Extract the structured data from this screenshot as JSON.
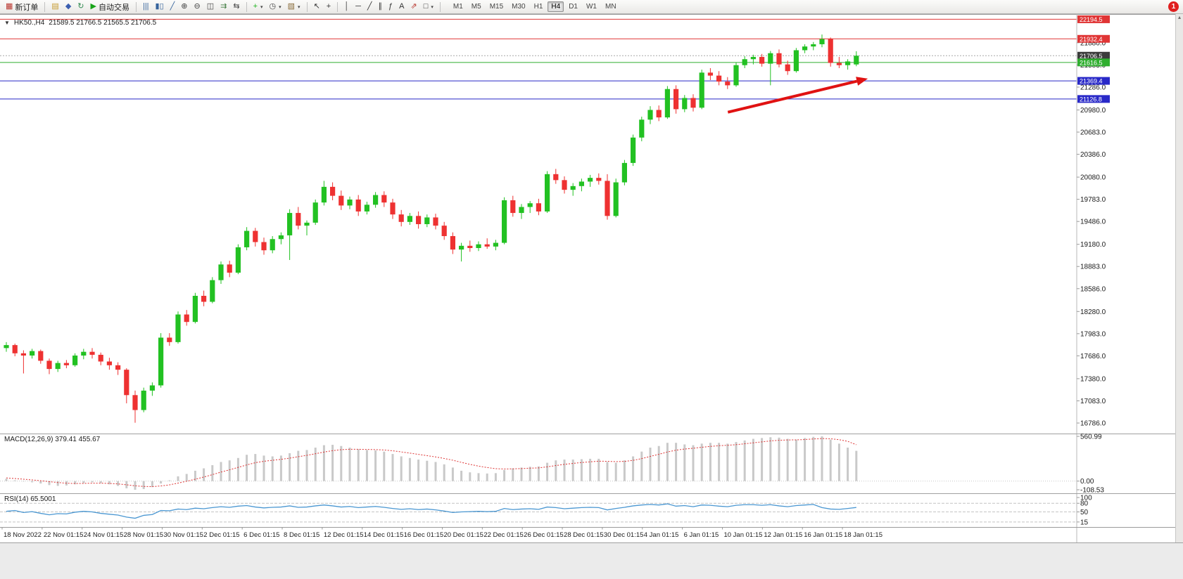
{
  "window": {
    "notification_badge": "1",
    "up_arrow_icon": "▴"
  },
  "toolbar": {
    "dropdown_glyph": "▾",
    "groups": [
      {
        "items": [
          {
            "name": "new-order-button",
            "glyph": "▦",
            "color": "#b8342c",
            "label": "新订单"
          }
        ]
      },
      {
        "items": [
          {
            "name": "charts-button",
            "glyph": "▤",
            "color": "#c79a2e"
          },
          {
            "name": "navigator-button",
            "glyph": "◆",
            "color": "#3c5fb0"
          },
          {
            "name": "refresh-button",
            "glyph": "↻",
            "color": "#2d8a4e"
          },
          {
            "name": "autotrading-button",
            "glyph": "▶",
            "color": "#17a317",
            "label": "自动交易"
          }
        ]
      },
      {
        "items": [
          {
            "name": "bar-chart-button",
            "glyph": "|||",
            "color": "#35639c"
          },
          {
            "name": "candlestick-chart-button",
            "glyph": "▮▯",
            "color": "#35639c"
          },
          {
            "name": "line-chart-button",
            "glyph": "╱",
            "color": "#35639c"
          },
          {
            "name": "zoom-in-button",
            "glyph": "⊕",
            "color": "#444444"
          },
          {
            "name": "zoom-out-button",
            "glyph": "⊖",
            "color": "#444444"
          },
          {
            "name": "tile-windows-button",
            "glyph": "◫",
            "color": "#444444"
          },
          {
            "name": "auto-scroll-button",
            "glyph": "⇉",
            "color": "#3f7a3f"
          },
          {
            "name": "chart-shift-button",
            "glyph": "⇆",
            "color": "#444444"
          }
        ]
      },
      {
        "items": [
          {
            "name": "indicators-button",
            "glyph": "+",
            "color": "#19b219",
            "dropdown": true
          },
          {
            "name": "periods-button",
            "glyph": "◷",
            "color": "#444444",
            "dropdown": true
          },
          {
            "name": "templates-button",
            "glyph": "▧",
            "color": "#8a6d3b",
            "dropdown": true
          }
        ]
      },
      {
        "items": [
          {
            "name": "cursor-button",
            "glyph": "↖",
            "color": "#333333"
          },
          {
            "name": "crosshair-button",
            "glyph": "+",
            "color": "#333333"
          }
        ]
      },
      {
        "items": [
          {
            "name": "vertical-line-button",
            "glyph": "│",
            "color": "#333333"
          },
          {
            "name": "horizontal-line-button",
            "glyph": "─",
            "color": "#333333"
          },
          {
            "name": "trendline-button",
            "glyph": "╱",
            "color": "#333333"
          },
          {
            "name": "channel-button",
            "glyph": "∥",
            "color": "#333333"
          },
          {
            "name": "fibonacci-button",
            "glyph": "ƒ",
            "color": "#333333"
          },
          {
            "name": "text-button",
            "glyph": "A",
            "color": "#333333"
          },
          {
            "name": "arrows-button",
            "glyph": "⇗",
            "color": "#b8342c"
          },
          {
            "name": "shapes-button",
            "glyph": "□",
            "color": "#333333",
            "dropdown": true
          }
        ]
      }
    ],
    "timeframes": {
      "items": [
        "M1",
        "M5",
        "M15",
        "M30",
        "H1",
        "H4",
        "D1",
        "W1",
        "MN"
      ],
      "active": "H4"
    }
  },
  "chart": {
    "collapse_icon": "▼",
    "symbol_label": "HK50.,H4",
    "ohlc_label": "21589.5 21766.5 21565.5 21706.5",
    "price_ticks": [
      21880.0,
      21583.0,
      21286.0,
      20980.0,
      20683.0,
      20386.0,
      20080.0,
      19783.0,
      19486.0,
      19180.0,
      18883.0,
      18586.0,
      18280.0,
      17983.0,
      17686.0,
      17380.0,
      17083.0,
      16786.0
    ],
    "price_tags": [
      {
        "text": "22194.5",
        "price": 22194.5,
        "bg": "#e03535"
      },
      {
        "text": "21932.4",
        "price": 21932.4,
        "bg": "#e03535"
      },
      {
        "text": "21706.5",
        "price": 21706.5,
        "bg": "#3c3c3c"
      },
      {
        "text": "21616.5",
        "price": 21616.5,
        "bg": "#2fae2f"
      },
      {
        "text": "21369.4",
        "price": 21369.4,
        "bg": "#2929c8"
      },
      {
        "text": "21126.8",
        "price": 21126.8,
        "bg": "#2929c8"
      }
    ]
  },
  "macd_panel": {
    "label": "MACD(12,26,9) 379.41 455.67",
    "max": 560.99,
    "min": -108.53,
    "axis_labels": [
      {
        "text": "560.99",
        "value": 560.99
      },
      {
        "text": "0.00",
        "value": 0
      },
      {
        "text": "-108.53",
        "value": -108.53
      }
    ]
  },
  "rsi_panel": {
    "label": "RSI(14) 65.5001",
    "levels": [
      80,
      50,
      15
    ],
    "axis_labels": [
      {
        "text": "100",
        "value": 100
      },
      {
        "text": "80",
        "value": 80
      },
      {
        "text": "50",
        "value": 50
      },
      {
        "text": "15",
        "value": 15
      }
    ]
  },
  "time_axis": {
    "labels": [
      "18 Nov 2022",
      "22 Nov 01:15",
      "24 Nov 01:15",
      "28 Nov 01:15",
      "30 Nov 01:15",
      "2 Dec 01:15",
      "6 Dec 01:15",
      "8 Dec 01:15",
      "12 Dec 01:15",
      "14 Dec 01:15",
      "16 Dec 01:15",
      "20 Dec 01:15",
      "22 Dec 01:15",
      "26 Dec 01:15",
      "28 Dec 01:15",
      "30 Dec 01:15",
      "4 Jan 01:15",
      "6 Jan 01:15",
      "10 Jan 01:15",
      "12 Jan 01:15",
      "16 Jan 01:15",
      "18 Jan 01:15"
    ]
  },
  "colors": {
    "bull": "#22c122",
    "bear": "#ee3131",
    "macd_hist": "#c9c9c9",
    "macd_signal": "#dd3333",
    "rsi_line": "#4a97d2",
    "axis_text": "#1a1a1a"
  },
  "chart_data": {
    "type": "candlestick",
    "symbol": "HK50.",
    "timeframe": "H4",
    "title": "HK50.,H4",
    "price_range": [
      16645,
      22208
    ],
    "last_ohlc": {
      "open": 21589.5,
      "high": 21766.5,
      "low": 21565.5,
      "close": 21706.5
    },
    "candles": [
      [
        17790,
        17870,
        17740,
        17830
      ],
      [
        17830,
        17850,
        17680,
        17720
      ],
      [
        17720,
        17760,
        17450,
        17690
      ],
      [
        17690,
        17780,
        17650,
        17750
      ],
      [
        17750,
        17770,
        17580,
        17620
      ],
      [
        17620,
        17650,
        17440,
        17510
      ],
      [
        17510,
        17620,
        17470,
        17590
      ],
      [
        17590,
        17630,
        17520,
        17560
      ],
      [
        17560,
        17720,
        17540,
        17690
      ],
      [
        17690,
        17780,
        17640,
        17740
      ],
      [
        17740,
        17790,
        17650,
        17700
      ],
      [
        17700,
        17730,
        17560,
        17610
      ],
      [
        17610,
        17660,
        17500,
        17560
      ],
      [
        17560,
        17600,
        17430,
        17500
      ],
      [
        17500,
        17520,
        17050,
        17160
      ],
      [
        17160,
        17220,
        16790,
        16960
      ],
      [
        16960,
        17260,
        16930,
        17220
      ],
      [
        17220,
        17330,
        17150,
        17290
      ],
      [
        17290,
        17990,
        17260,
        17930
      ],
      [
        17930,
        17990,
        17820,
        17870
      ],
      [
        17870,
        18280,
        17850,
        18240
      ],
      [
        18240,
        18300,
        18090,
        18140
      ],
      [
        18140,
        18530,
        18120,
        18490
      ],
      [
        18490,
        18560,
        18350,
        18410
      ],
      [
        18410,
        18740,
        18390,
        18700
      ],
      [
        18700,
        18950,
        18650,
        18910
      ],
      [
        18910,
        18960,
        18740,
        18800
      ],
      [
        18800,
        19180,
        18780,
        19140
      ],
      [
        19140,
        19410,
        19100,
        19360
      ],
      [
        19360,
        19400,
        19150,
        19210
      ],
      [
        19210,
        19270,
        19040,
        19100
      ],
      [
        19100,
        19290,
        19060,
        19250
      ],
      [
        19250,
        19340,
        19180,
        19300
      ],
      [
        19300,
        19650,
        18970,
        19600
      ],
      [
        19600,
        19680,
        19380,
        19430
      ],
      [
        19430,
        19500,
        19300,
        19470
      ],
      [
        19470,
        19780,
        19440,
        19740
      ],
      [
        19740,
        20030,
        19700,
        19950
      ],
      [
        19950,
        20010,
        19770,
        19830
      ],
      [
        19830,
        19900,
        19640,
        19700
      ],
      [
        19700,
        19820,
        19650,
        19780
      ],
      [
        19780,
        19840,
        19560,
        19620
      ],
      [
        19620,
        19750,
        19580,
        19710
      ],
      [
        19710,
        19880,
        19670,
        19840
      ],
      [
        19840,
        19890,
        19680,
        19740
      ],
      [
        19740,
        19790,
        19520,
        19580
      ],
      [
        19580,
        19640,
        19420,
        19480
      ],
      [
        19480,
        19600,
        19440,
        19560
      ],
      [
        19560,
        19620,
        19390,
        19450
      ],
      [
        19450,
        19580,
        19410,
        19540
      ],
      [
        19540,
        19590,
        19380,
        19430
      ],
      [
        19430,
        19480,
        19240,
        19290
      ],
      [
        19290,
        19340,
        19050,
        19110
      ],
      [
        19110,
        19200,
        18950,
        19160
      ],
      [
        19160,
        19230,
        19080,
        19130
      ],
      [
        19130,
        19220,
        19090,
        19180
      ],
      [
        19180,
        19260,
        19120,
        19150
      ],
      [
        19150,
        19240,
        19100,
        19200
      ],
      [
        19200,
        19810,
        19180,
        19770
      ],
      [
        19770,
        19830,
        19550,
        19600
      ],
      [
        19600,
        19720,
        19520,
        19680
      ],
      [
        19680,
        19760,
        19600,
        19730
      ],
      [
        19730,
        19790,
        19570,
        19620
      ],
      [
        19620,
        20160,
        19600,
        20120
      ],
      [
        20120,
        20190,
        19990,
        20040
      ],
      [
        20040,
        20090,
        19860,
        19910
      ],
      [
        19910,
        20000,
        19830,
        19960
      ],
      [
        19960,
        20060,
        19890,
        20020
      ],
      [
        20020,
        20110,
        19950,
        20070
      ],
      [
        20070,
        20130,
        19980,
        20030
      ],
      [
        20030,
        20120,
        19510,
        19560
      ],
      [
        19560,
        20060,
        19540,
        20010
      ],
      [
        20010,
        20310,
        19970,
        20270
      ],
      [
        20270,
        20650,
        20230,
        20610
      ],
      [
        20610,
        20890,
        20560,
        20850
      ],
      [
        20850,
        21030,
        20790,
        20980
      ],
      [
        20980,
        21040,
        20830,
        20880
      ],
      [
        20880,
        21300,
        20860,
        21260
      ],
      [
        21260,
        21310,
        20930,
        20990
      ],
      [
        20990,
        21180,
        20950,
        21140
      ],
      [
        21140,
        21190,
        20960,
        21010
      ],
      [
        21010,
        21520,
        20990,
        21480
      ],
      [
        21480,
        21540,
        21380,
        21440
      ],
      [
        21440,
        21500,
        21310,
        21360
      ],
      [
        21360,
        21420,
        21260,
        21310
      ],
      [
        21310,
        21620,
        21290,
        21580
      ],
      [
        21580,
        21700,
        21540,
        21660
      ],
      [
        21660,
        21720,
        21590,
        21690
      ],
      [
        21690,
        21730,
        21560,
        21600
      ],
      [
        21600,
        21770,
        21310,
        21740
      ],
      [
        21740,
        21790,
        21550,
        21590
      ],
      [
        21590,
        21640,
        21450,
        21500
      ],
      [
        21500,
        21810,
        21480,
        21780
      ],
      [
        21780,
        21860,
        21740,
        21830
      ],
      [
        21830,
        21890,
        21780,
        21860
      ],
      [
        21860,
        21990,
        21820,
        21930
      ],
      [
        21930,
        21950,
        21560,
        21610
      ],
      [
        21610,
        21690,
        21540,
        21580
      ],
      [
        21580,
        21660,
        21520,
        21630
      ],
      [
        21589.5,
        21766.5,
        21565.5,
        21706.5
      ]
    ],
    "indicators": {
      "macd": {
        "params": "12,26,9",
        "current_macd": 379.41,
        "current_signal": 455.67,
        "histogram": [
          30,
          10,
          -5,
          -15,
          -30,
          -50,
          -60,
          -55,
          -40,
          -25,
          -15,
          -25,
          -40,
          -60,
          -90,
          -108.53,
          -100,
          -75,
          -30,
          10,
          60,
          90,
          130,
          160,
          200,
          240,
          260,
          290,
          330,
          340,
          320,
          310,
          320,
          350,
          380,
          390,
          420,
          450,
          455,
          440,
          420,
          400,
          390,
          385,
          370,
          340,
          310,
          290,
          270,
          255,
          240,
          210,
          170,
          130,
          110,
          100,
          95,
          100,
          140,
          160,
          170,
          180,
          185,
          230,
          260,
          270,
          270,
          275,
          280,
          280,
          240,
          230,
          260,
          310,
          370,
          420,
          440,
          480,
          480,
          460,
          450,
          470,
          480,
          480,
          470,
          490,
          510,
          530,
          540,
          550,
          545,
          530,
          520,
          540,
          555,
          560.99,
          520,
          470,
          420,
          379.41
        ],
        "signal": [
          40,
          32,
          24,
          15,
          5,
          -7,
          -18,
          -26,
          -30,
          -29,
          -26,
          -26,
          -29,
          -35,
          -46,
          -59,
          -67,
          -69,
          -61,
          -47,
          -25,
          -2,
          24,
          51,
          81,
          113,
          142,
          172,
          203,
          231,
          248,
          261,
          273,
          288,
          306,
          323,
          343,
          364,
          382,
          394,
          399,
          399,
          397,
          395,
          390,
          380,
          366,
          351,
          335,
          319,
          303,
          284,
          262,
          235,
          210,
          188,
          170,
          156,
          152,
          154,
          157,
          162,
          166,
          179,
          195,
          210,
          222,
          233,
          242,
          250,
          248,
          244,
          247,
          260,
          282,
          310,
          336,
          365,
          388,
          402,
          412,
          424,
          435,
          444,
          449,
          457,
          468,
          480,
          492,
          504,
          512,
          516,
          517,
          521,
          528,
          534,
          531,
          519,
          499,
          455.67
        ]
      },
      "rsi": {
        "params": "14",
        "current": 65.5001,
        "values": [
          52,
          55,
          48,
          51,
          45,
          40,
          44,
          43,
          49,
          52,
          50,
          45,
          42,
          39,
          32,
          28,
          38,
          41,
          55,
          54,
          60,
          58,
          63,
          61,
          65,
          68,
          66,
          70,
          72,
          67,
          64,
          66,
          67,
          71,
          66,
          67,
          71,
          74,
          71,
          67,
          69,
          65,
          67,
          69,
          66,
          62,
          59,
          61,
          58,
          60,
          57,
          53,
          48,
          50,
          51,
          52,
          51,
          52,
          62,
          58,
          60,
          61,
          59,
          67,
          65,
          61,
          63,
          65,
          66,
          65,
          57,
          62,
          66,
          71,
          74,
          76,
          74,
          78,
          70,
          72,
          68,
          74,
          73,
          70,
          68,
          73,
          75,
          75,
          73,
          75,
          71,
          68,
          72,
          74,
          76,
          65,
          60,
          59,
          62,
          65.5
        ]
      }
    },
    "annotations": {
      "horizontal_lines": [
        {
          "price": 22194.5,
          "color": "#e03535",
          "style": "solid"
        },
        {
          "price": 21932.4,
          "color": "#e03535",
          "style": "solid"
        },
        {
          "price": 21706.5,
          "color": "#a8a8a8",
          "style": "dotted"
        },
        {
          "price": 21616.5,
          "color": "#2fae2f",
          "style": "solid"
        },
        {
          "price": 21369.4,
          "color": "#2929c8",
          "style": "solid"
        },
        {
          "price": 21126.8,
          "color": "#2929c8",
          "style": "solid"
        }
      ],
      "arrow": {
        "from_x_frac": 0.676,
        "from_price": 20950,
        "to_x_frac": 0.806,
        "to_price": 21400,
        "color": "#e01212"
      }
    }
  }
}
